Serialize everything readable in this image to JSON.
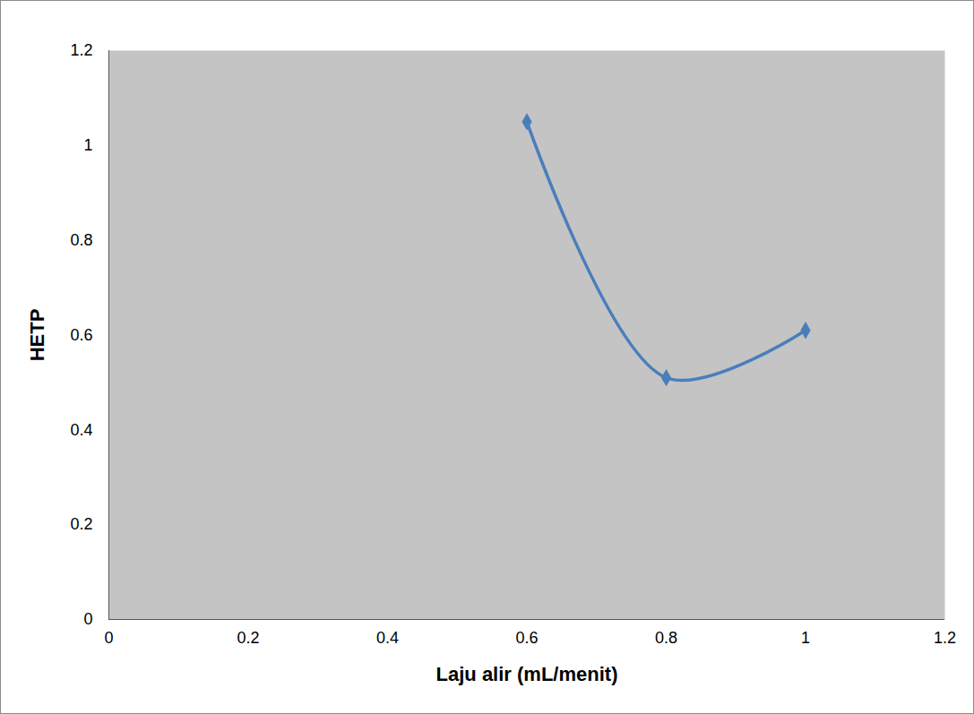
{
  "chart_data": {
    "type": "line",
    "x_label": "Laju alir (mL/menit)",
    "y_label": "HETP",
    "x": [
      0.6,
      0.8,
      1.0
    ],
    "series": [
      {
        "name": "HETP",
        "color": "#4a7ebb",
        "values": [
          1.05,
          0.51,
          0.61
        ],
        "marker": "diamond",
        "line_style": "solid"
      }
    ],
    "xlim": [
      0,
      1.2
    ],
    "xticks": [
      0,
      0.2,
      0.4,
      0.6,
      0.8,
      1,
      1.2
    ],
    "ylim": [
      0,
      1.2
    ],
    "yticks": [
      0,
      0.2,
      0.4,
      0.6,
      0.8,
      1,
      1.2
    ],
    "grid": false
  }
}
